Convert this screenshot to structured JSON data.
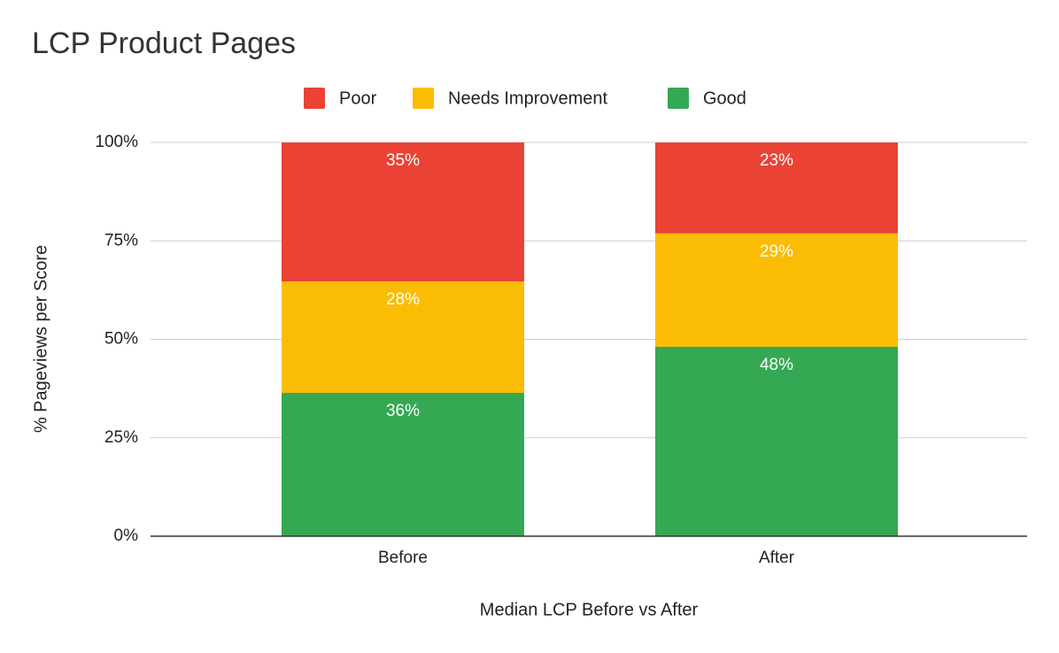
{
  "chart_data": {
    "type": "stacked_bar",
    "title": "LCP Product Pages",
    "x_label": "Median LCP Before vs After",
    "y_label": "% Pageviews per Score",
    "categories": [
      "Before",
      "After"
    ],
    "series": [
      {
        "name": "Poor",
        "color": "#ea4335",
        "values": [
          35.3,
          23.1
        ],
        "value_labels": [
          "35%",
          "23%"
        ]
      },
      {
        "name": "Needs Improvement",
        "color": "#fbbc04",
        "values": [
          28.3,
          28.8
        ],
        "value_labels": [
          "28%",
          "29%"
        ]
      },
      {
        "name": "Good",
        "color": "#34a853",
        "values": [
          36.4,
          48.1
        ],
        "value_labels": [
          "36%",
          "48%"
        ]
      }
    ],
    "ylim": [
      0,
      100
    ],
    "yticks": [
      {
        "value": 0,
        "label": "0%"
      },
      {
        "value": 25,
        "label": "25%"
      },
      {
        "value": 50,
        "label": "50%"
      },
      {
        "value": 75,
        "label": "75%"
      },
      {
        "value": 100,
        "label": "100%"
      }
    ],
    "grid": true,
    "legend": "top"
  }
}
